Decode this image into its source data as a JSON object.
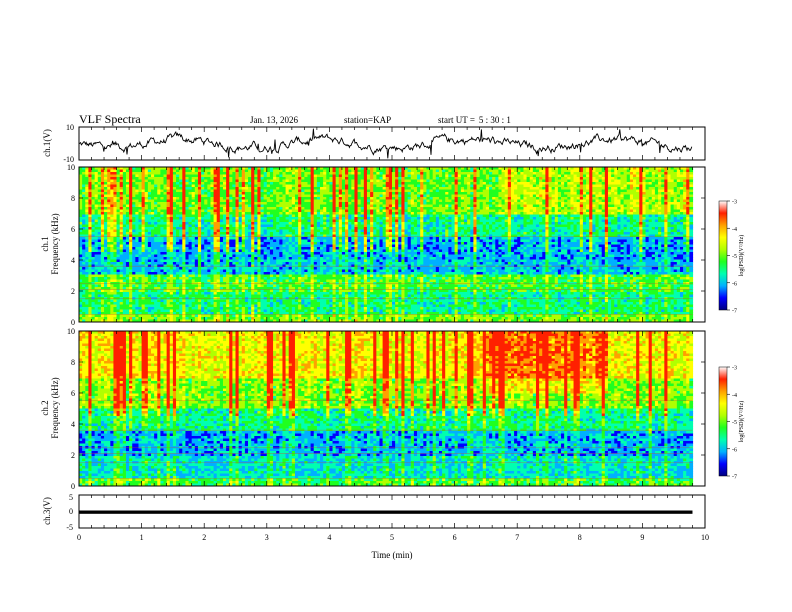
{
  "header": {
    "title": "VLF Spectra",
    "date": "Jan. 13, 2026",
    "station_label": "station=",
    "station": "KAP",
    "start_label": "start UT =",
    "start_time": "5 : 30 : 1"
  },
  "colors": {
    "spectrogram_scale": [
      "#00007f",
      "#0000ff",
      "#00b0ff",
      "#00ffb0",
      "#20ff20",
      "#b0ff00",
      "#ffff00",
      "#ffa000",
      "#ff2000",
      "#ffffff"
    ],
    "trace": "#000000"
  },
  "chart_data": [
    {
      "type": "line",
      "name": "ch.1 waveform",
      "ylabel": "ch.1(V)",
      "ylim": [
        -10,
        10
      ],
      "yticks": [
        "10",
        "-10"
      ],
      "xlim": [
        0,
        10
      ],
      "series": [
        {
          "name": "ch.1",
          "x_range": [
            0,
            9.8
          ],
          "description": "noisy trace mostly between -6 and 6 V"
        }
      ]
    },
    {
      "type": "heatmap",
      "name": "ch.1 spectrogram",
      "ylabel_line1": "ch.1",
      "ylabel_line2": "Frequency (kHz)",
      "ylim": [
        0,
        10
      ],
      "yticks": [
        "0",
        "2",
        "4",
        "6",
        "8",
        "10"
      ],
      "xlim": [
        0,
        10
      ],
      "data_extent_min": 9.8,
      "bands_khz": [
        {
          "from": 0,
          "to": 0.5,
          "level": 0.55
        },
        {
          "from": 0.5,
          "to": 2,
          "level": 0.42
        },
        {
          "from": 2,
          "to": 3,
          "level": 0.5
        },
        {
          "from": 3,
          "to": 4,
          "level": 0.3
        },
        {
          "from": 4,
          "to": 5.5,
          "level": 0.28
        },
        {
          "from": 5.5,
          "to": 7,
          "level": 0.42
        },
        {
          "from": 7,
          "to": 10,
          "level": 0.55
        }
      ],
      "colorbar": {
        "label": "log(PSD)(V²/Hz)",
        "ticks": [
          "-3",
          "-4",
          "-5",
          "-6",
          "-7"
        ],
        "range": [
          -7,
          -3
        ]
      }
    },
    {
      "type": "heatmap",
      "name": "ch.2 spectrogram",
      "ylabel_line1": "ch.2",
      "ylabel_line2": "Frequency (kHz)",
      "ylim": [
        0,
        10
      ],
      "yticks": [
        "0",
        "2",
        "4",
        "6",
        "8",
        "10"
      ],
      "xlim": [
        0,
        10
      ],
      "data_extent_min": 9.8,
      "bands_khz": [
        {
          "from": 0,
          "to": 0.5,
          "level": 0.5
        },
        {
          "from": 0.5,
          "to": 2,
          "level": 0.35
        },
        {
          "from": 2,
          "to": 3.5,
          "level": 0.28
        },
        {
          "from": 3.5,
          "to": 5,
          "level": 0.42
        },
        {
          "from": 5,
          "to": 7,
          "level": 0.58
        },
        {
          "from": 7,
          "to": 10,
          "level": 0.72
        }
      ],
      "colorbar": {
        "label": "log(PSD)(V²/Hz)",
        "ticks": [
          "-3",
          "-4",
          "-5",
          "-6",
          "-7"
        ],
        "range": [
          -7,
          -3
        ]
      }
    },
    {
      "type": "line",
      "name": "ch.3 waveform",
      "ylabel": "ch.3(V)",
      "ylim": [
        -5,
        5
      ],
      "yticks": [
        "5",
        "0",
        "-5"
      ],
      "xlabel": "Time (min)",
      "xlim": [
        0,
        10
      ],
      "xticks": [
        "0",
        "1",
        "2",
        "3",
        "4",
        "5",
        "6",
        "7",
        "8",
        "9",
        "10"
      ],
      "series": [
        {
          "name": "ch.3",
          "x_range": [
            0,
            9.8
          ],
          "value_band": [
            -0.7,
            0.3
          ],
          "description": "saturated flat band near 0 V"
        }
      ]
    }
  ]
}
